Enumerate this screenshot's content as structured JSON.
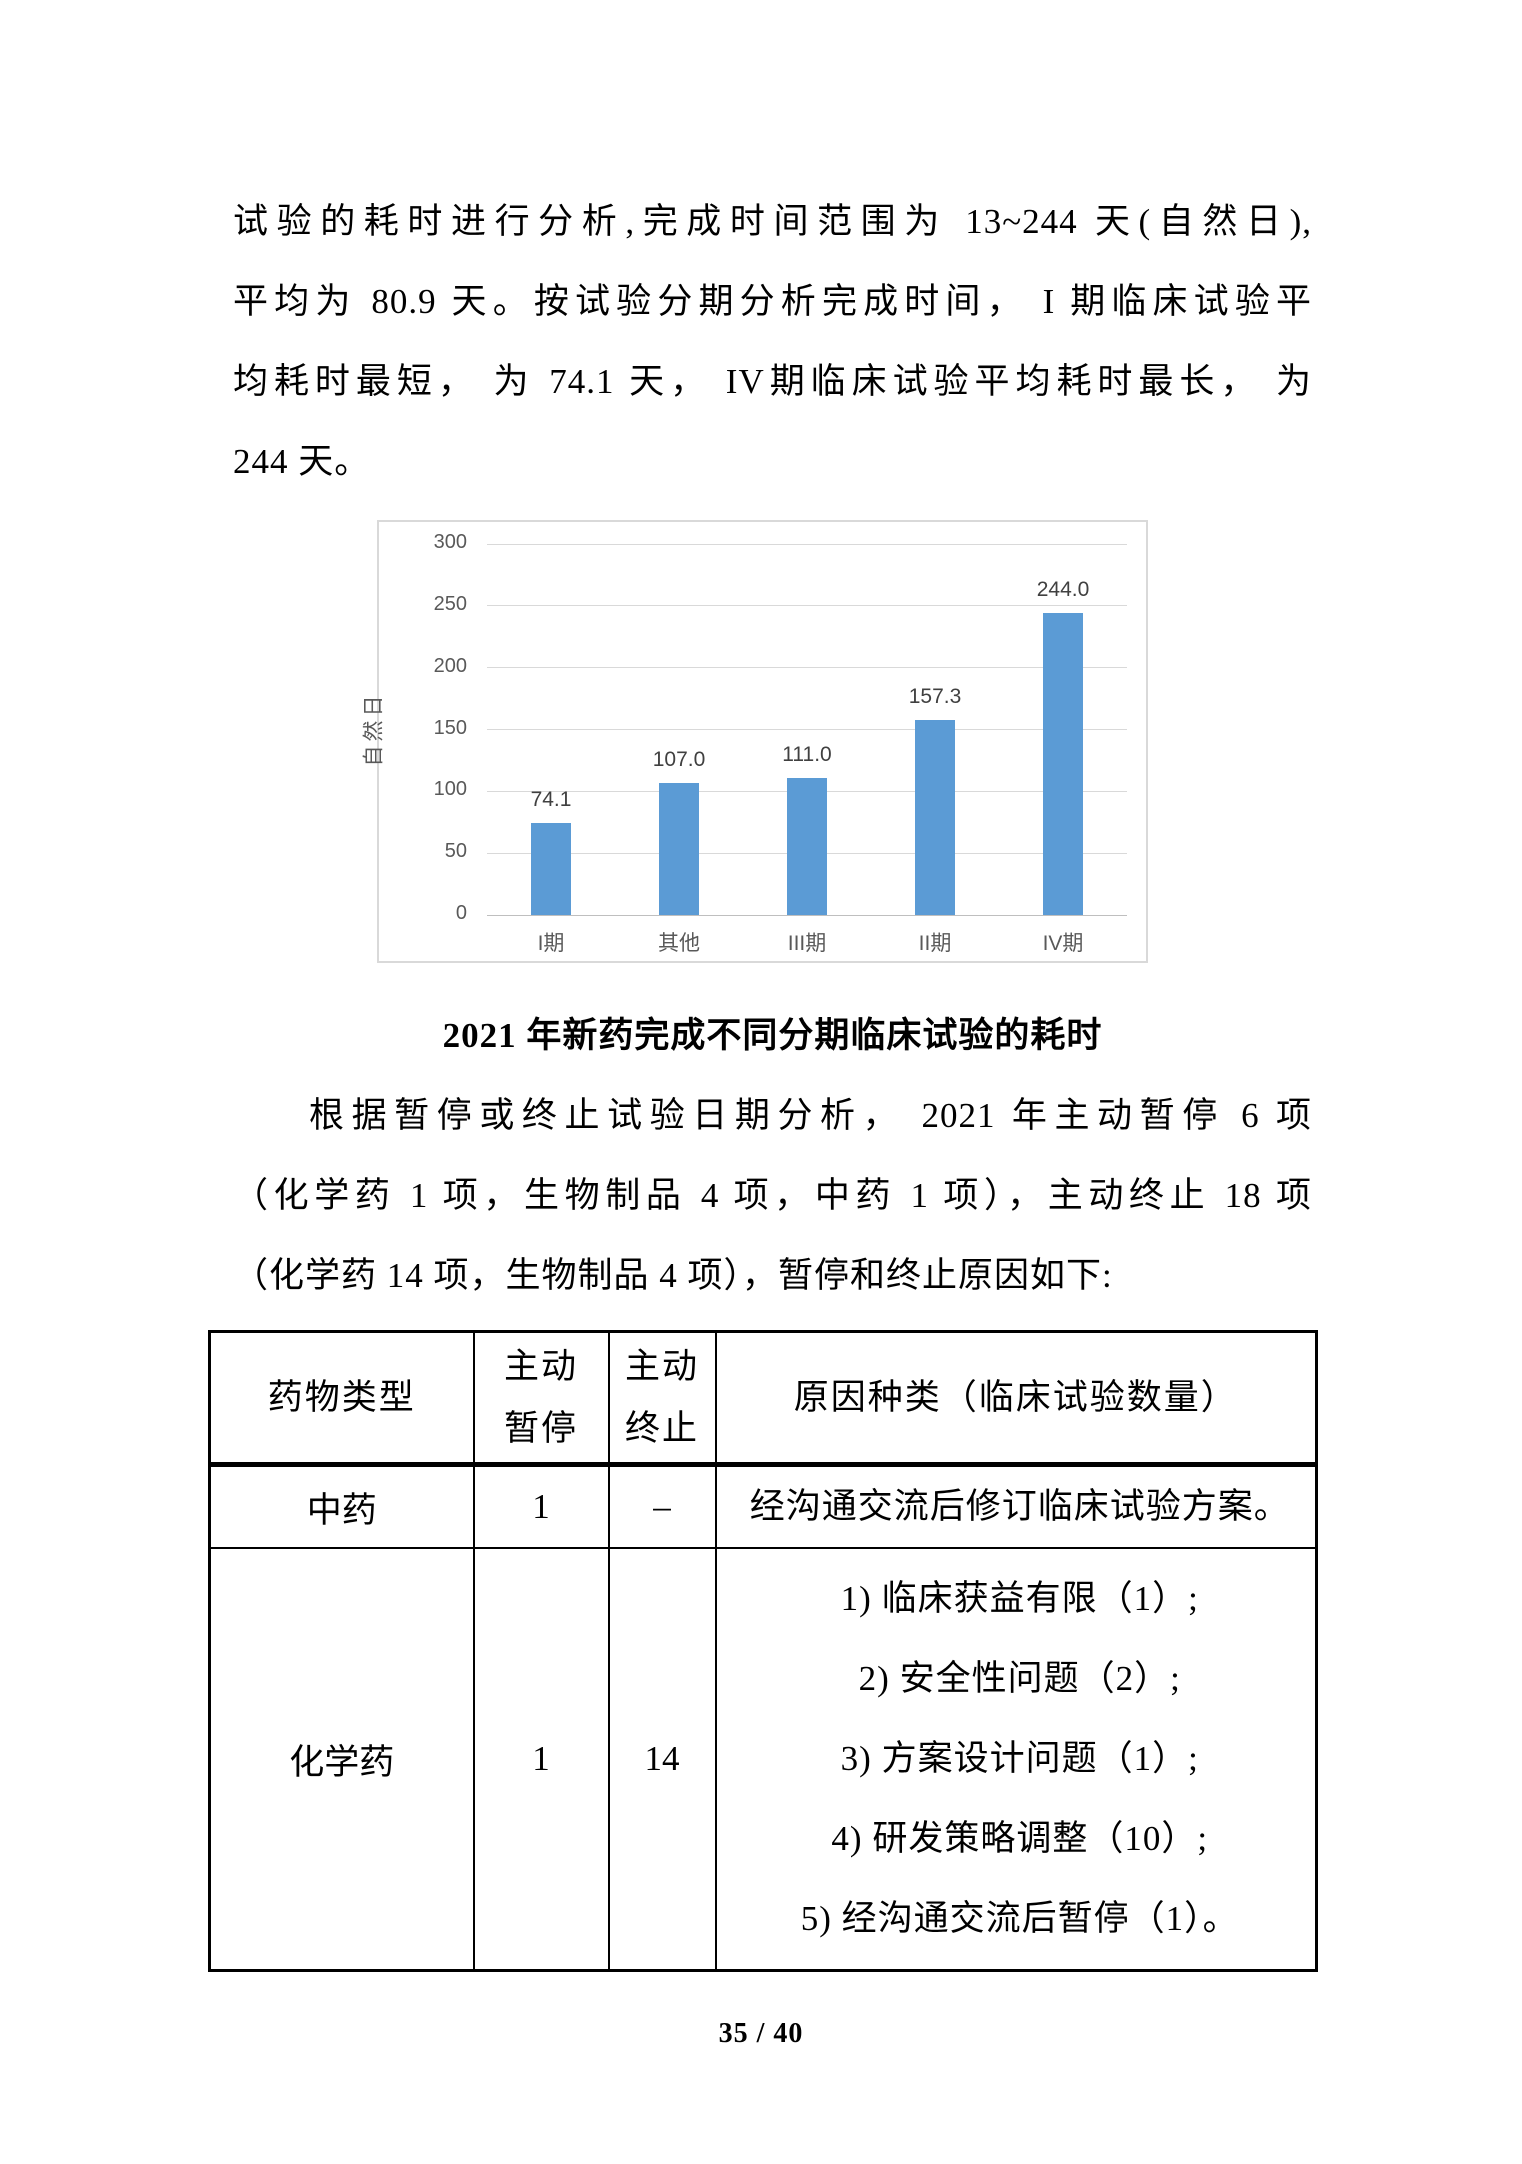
{
  "intro": {
    "lines": [
      "试验的耗时进行分析,完成时间范围为 13~244 天(自然日),",
      "平均为 80.9 天。按试验分期分析完成时间， I 期临床试验平",
      "均耗时最短， 为 74.1 天， IV期临床试验平均耗时最长， 为",
      "244 天。"
    ]
  },
  "chart_data": {
    "type": "bar",
    "categories": [
      "I期",
      "其他",
      "III期",
      "II期",
      "IV期"
    ],
    "values": [
      74.1,
      107.0,
      111.0,
      157.3,
      244.0
    ],
    "value_labels": [
      "74.1",
      "107.0",
      "111.0",
      "157.3",
      "244.0"
    ],
    "title": "",
    "xlabel": "",
    "ylabel": "自然日",
    "yticks": [
      0,
      50,
      100,
      150,
      200,
      250,
      300
    ],
    "ylim": [
      0,
      300
    ],
    "grid": true,
    "legend": "none",
    "bar_color": "#5B9BD5",
    "grid_color": "#D9D9D9",
    "axis_text_color": "#595959",
    "data_label_color": "#404040"
  },
  "caption": "2021 年新药完成不同分期临床试验的耗时",
  "para2": {
    "lines": [
      "根据暂停或终止试验日期分析， 2021 年主动暂停 6 项",
      "（化学药 1 项，生物制品 4 项，中药 1 项），主动终止 18 项",
      "（化学药 14 项，生物制品 4 项），暂停和终止原因如下:"
    ]
  },
  "table": {
    "headers": {
      "col1": "药物类型",
      "col2": "主动\n暂停",
      "col3": "主动\n终止",
      "col4": "原因种类（临床试验数量）"
    },
    "rows": [
      {
        "type": "中药",
        "pause": "1",
        "terminate": "–",
        "reasons": [
          "经沟通交流后修订临床试验方案。"
        ]
      },
      {
        "type": "化学药",
        "pause": "1",
        "terminate": "14",
        "reasons": [
          "1) 临床获益有限（1）;",
          "2) 安全性问题（2）;",
          "3) 方案设计问题（1）;",
          "4) 研发策略调整（10）;",
          "5) 经沟通交流后暂停（1）。"
        ]
      }
    ]
  },
  "footer": {
    "page_number": "35 / 40"
  }
}
